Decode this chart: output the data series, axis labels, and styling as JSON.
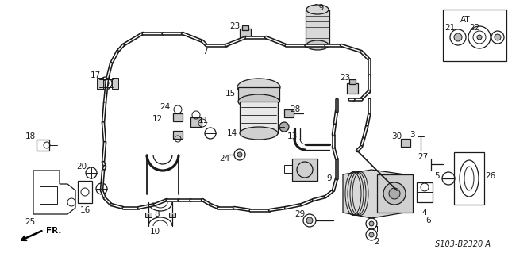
{
  "bg_color": "#ffffff",
  "line_color": "#1a1a1a",
  "label_color": "#000000",
  "code": "S103-B2320 A",
  "figsize": [
    6.4,
    3.19
  ],
  "dpi": 100
}
